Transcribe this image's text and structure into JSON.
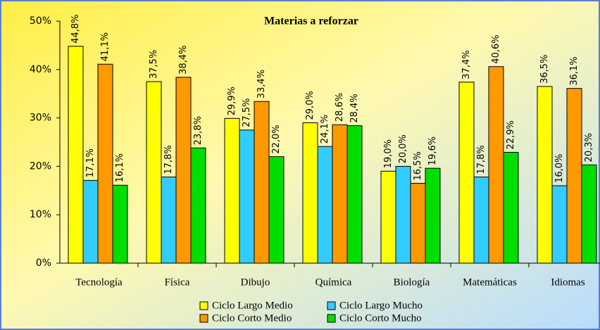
{
  "chart_data": {
    "type": "bar",
    "title": "Materias a reforzar",
    "categories": [
      "Tecnología",
      "Física",
      "Dibujo",
      "Química",
      "Biología",
      "Matemáticas",
      "Idiomas"
    ],
    "series": [
      {
        "name": "Ciclo Largo Medio",
        "color": "#ffff00",
        "values": [
          44.8,
          37.5,
          29.9,
          29.0,
          19.0,
          37.4,
          36.5
        ],
        "value_labels": [
          "44,8%",
          "37,5%",
          "29,9%",
          "29,0%",
          "19,0%",
          "37,4%",
          "36,5%"
        ]
      },
      {
        "name": "Ciclo Largo Mucho",
        "color": "#33ccff",
        "values": [
          17.1,
          17.8,
          27.5,
          24.1,
          20.0,
          17.8,
          16.0
        ],
        "value_labels": [
          "17,1%",
          "17,8%",
          "27,5%",
          "24,1%",
          "20,0%",
          "17,8%",
          "16,0%"
        ]
      },
      {
        "name": "Ciclo Corto Medio",
        "color": "#ff9900",
        "values": [
          41.1,
          38.4,
          33.4,
          28.6,
          16.5,
          40.6,
          36.1
        ],
        "value_labels": [
          "41,1%",
          "38,4%",
          "33,4%",
          "28,6%",
          "16,5%",
          "40,6%",
          "36,1%"
        ]
      },
      {
        "name": "Ciclo Corto Mucho",
        "color": "#00dd00",
        "values": [
          16.1,
          23.8,
          22.0,
          28.4,
          19.6,
          22.9,
          20.3
        ],
        "value_labels": [
          "16,1%",
          "23,8%",
          "22,0%",
          "28,4%",
          "19,6%",
          "22,9%",
          "20,3%"
        ]
      }
    ],
    "ylim": [
      0,
      50
    ],
    "yticks": [
      {
        "value": 0,
        "label": "0%"
      },
      {
        "value": 10,
        "label": "10%"
      },
      {
        "value": 20,
        "label": "20%"
      },
      {
        "value": 30,
        "label": "30%"
      },
      {
        "value": 40,
        "label": "40%"
      },
      {
        "value": 50,
        "label": "50%"
      }
    ],
    "grid": false
  }
}
